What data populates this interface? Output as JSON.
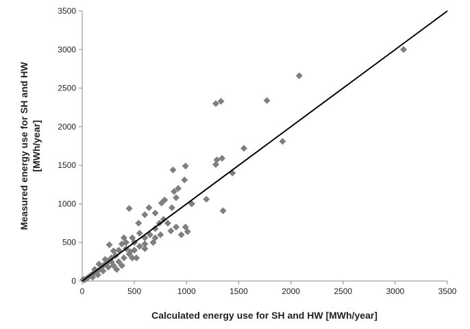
{
  "chart_data": {
    "type": "scatter",
    "x_label": "Calculated energy use for SH and HW [MWh/year]",
    "y_label": [
      "Measured energy use for SH and HW",
      "[MWh/year]"
    ],
    "xlim": [
      0,
      3500
    ],
    "ylim": [
      0,
      3500
    ],
    "xticks": [
      0,
      500,
      1000,
      1500,
      2000,
      2500,
      3000,
      3500
    ],
    "yticks": [
      0,
      500,
      1000,
      1500,
      2000,
      2500,
      3000,
      3500
    ],
    "grid": false,
    "reference_line": {
      "x": [
        0,
        3500
      ],
      "y": [
        0,
        3500
      ],
      "color": "#000000"
    },
    "series": [
      {
        "color": "#7f7f7f",
        "x": [
          3080,
          2080,
          1770,
          1330,
          1280,
          1920,
          1550,
          1440,
          1340,
          1290,
          1280,
          1190,
          1350,
          1050,
          990,
          870,
          980,
          920,
          880,
          900,
          790,
          760,
          450,
          640,
          600,
          700,
          860,
          990,
          1010,
          950,
          820,
          780,
          740,
          540,
          480,
          420,
          380,
          260,
          300,
          500,
          600,
          650,
          700,
          550,
          400,
          350,
          320,
          280,
          250,
          230,
          200,
          180,
          150,
          130,
          100,
          80,
          60,
          40,
          20,
          10,
          350,
          400,
          450,
          500,
          550,
          300,
          250,
          200,
          150,
          100,
          420,
          480,
          600,
          680,
          750,
          850,
          900,
          700,
          380,
          330,
          280,
          220,
          160,
          120,
          600,
          520,
          460
        ],
        "values": [
          3000,
          2660,
          2340,
          2330,
          2300,
          1810,
          1720,
          1400,
          1590,
          1570,
          1510,
          1060,
          910,
          1000,
          1490,
          1440,
          1310,
          1200,
          1160,
          1080,
          1050,
          1010,
          940,
          950,
          860,
          880,
          950,
          700,
          640,
          600,
          750,
          800,
          750,
          750,
          560,
          500,
          480,
          470,
          390,
          500,
          560,
          600,
          680,
          620,
          560,
          400,
          330,
          300,
          260,
          230,
          200,
          160,
          130,
          110,
          90,
          70,
          50,
          30,
          15,
          20,
          250,
          300,
          350,
          400,
          450,
          200,
          180,
          130,
          80,
          50,
          420,
          300,
          480,
          500,
          600,
          650,
          700,
          560,
          200,
          150,
          250,
          280,
          220,
          150,
          420,
          300,
          380
        ]
      }
    ]
  }
}
